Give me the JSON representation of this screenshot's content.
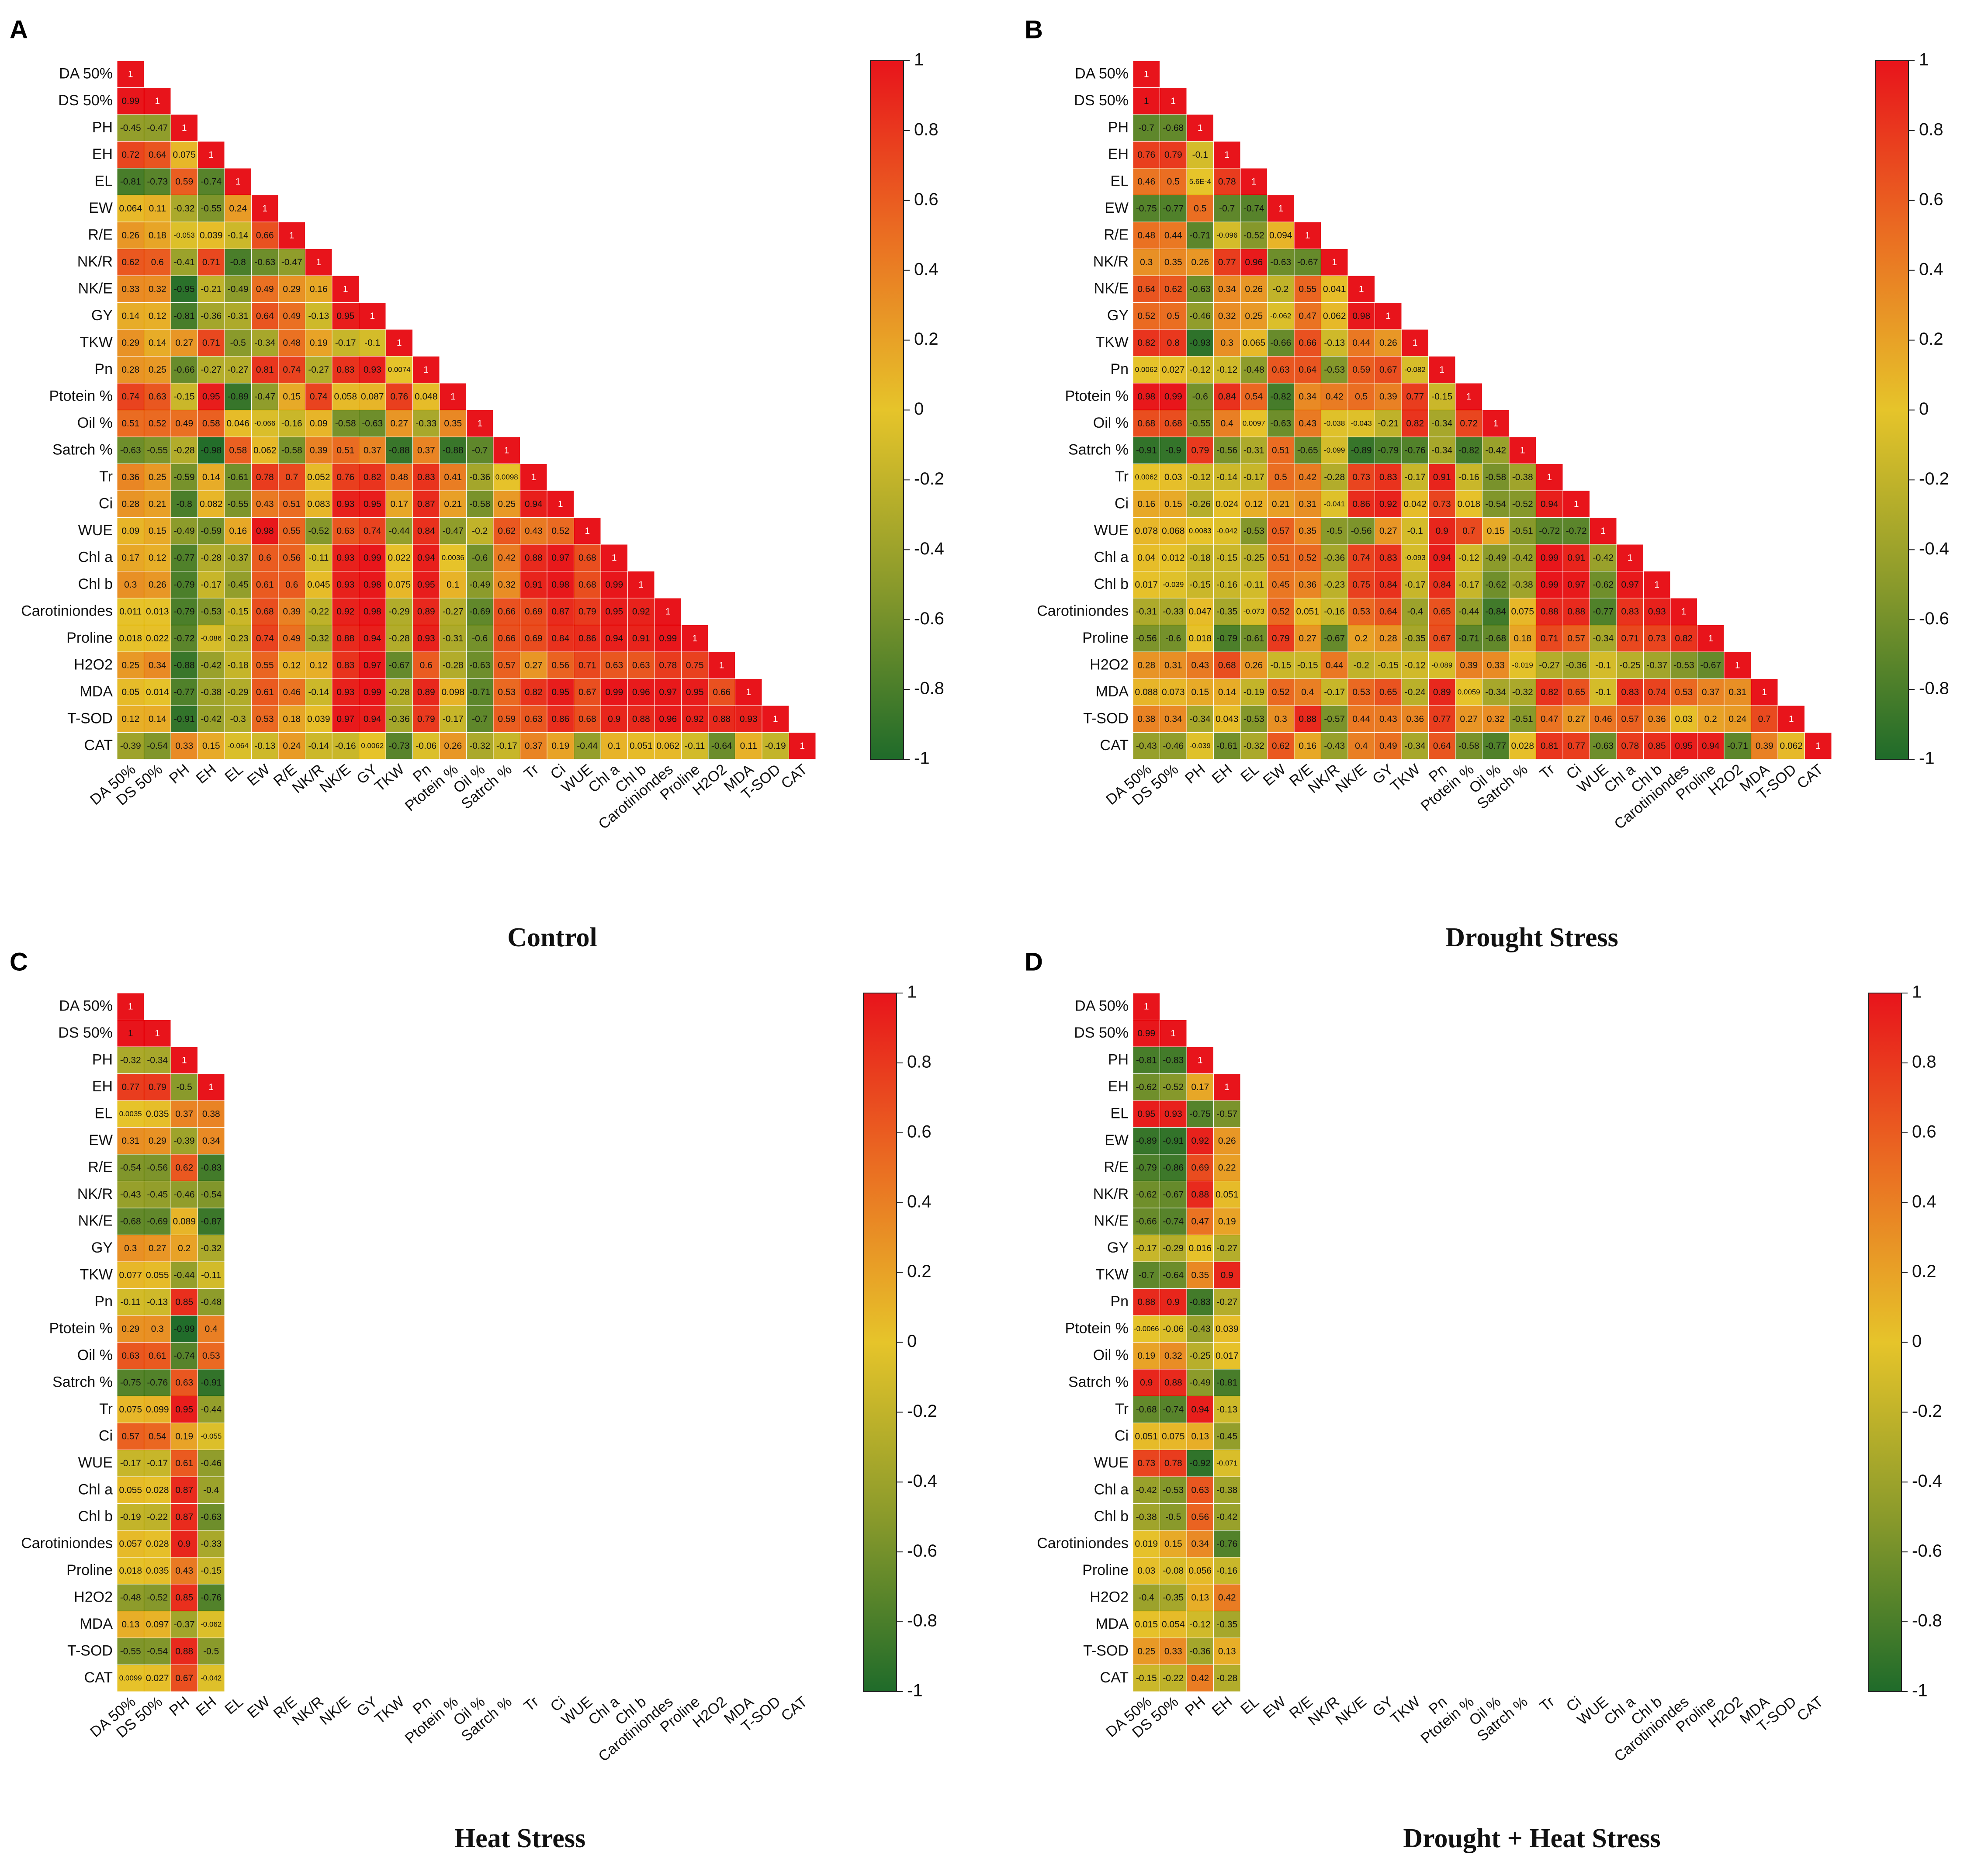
{
  "figure": {
    "variables": [
      "DA 50%",
      "DS 50%",
      "PH",
      "EH",
      "EL",
      "EW",
      "R/E",
      "NK/R",
      "NK/E",
      "GY",
      "TKW",
      "Pn",
      "Ptotein %",
      "Oil %",
      "Satrch %",
      "Tr",
      "Ci",
      "WUE",
      "Chl a",
      "Chl b",
      "Carotiniondes",
      "Proline",
      "H2O2",
      "MDA",
      "T-SOD",
      "CAT"
    ],
    "colorbar_ticks": [
      "1",
      "0.8",
      "0.6",
      "0.4",
      "0.2",
      "0",
      "-0.2",
      "-0.4",
      "-0.6",
      "-0.8",
      "-1"
    ],
    "colors": {
      "positive": "#e8141b",
      "middle": "#e6c42a",
      "negative": "#1f6b2a"
    }
  },
  "chart_data": [
    {
      "type": "heatmap",
      "panel_letter": "A",
      "title": "Control",
      "vmin": -1,
      "vmax": 1,
      "rows": [
        [
          "1"
        ],
        [
          "0.99",
          "1"
        ],
        [
          "-0.45",
          "-0.47",
          "1"
        ],
        [
          "0.72",
          "0.64",
          "0.075",
          "1"
        ],
        [
          "-0.81",
          "-0.73",
          "0.59",
          "-0.74",
          "1"
        ],
        [
          "0.064",
          "0.11",
          "-0.32",
          "-0.55",
          "0.24",
          "1"
        ],
        [
          "0.26",
          "0.18",
          "-0.053",
          "0.039",
          "-0.14",
          "0.66",
          "1"
        ],
        [
          "0.62",
          "0.6",
          "-0.41",
          "0.71",
          "-0.8",
          "-0.63",
          "-0.47",
          "1"
        ],
        [
          "0.33",
          "0.32",
          "-0.95",
          "-0.21",
          "-0.49",
          "0.49",
          "0.29",
          "0.16",
          "1"
        ],
        [
          "0.14",
          "0.12",
          "-0.81",
          "-0.36",
          "-0.31",
          "0.64",
          "0.49",
          "-0.13",
          "0.95",
          "1"
        ],
        [
          "0.29",
          "0.14",
          "0.27",
          "0.71",
          "-0.5",
          "-0.34",
          "0.48",
          "0.19",
          "-0.17",
          "-0.1",
          "1"
        ],
        [
          "0.28",
          "0.25",
          "-0.66",
          "-0.27",
          "-0.27",
          "0.81",
          "0.74",
          "-0.27",
          "0.83",
          "0.93",
          "0.0074",
          "1"
        ],
        [
          "0.74",
          "0.63",
          "-0.15",
          "0.95",
          "-0.89",
          "-0.47",
          "0.15",
          "0.74",
          "0.058",
          "0.087",
          "0.76",
          "0.048",
          "1"
        ],
        [
          "0.51",
          "0.52",
          "0.49",
          "0.58",
          "0.046",
          "-0.066",
          "-0.16",
          "0.09",
          "-0.58",
          "-0.63",
          "0.27",
          "-0.33",
          "0.35",
          "1"
        ],
        [
          "-0.63",
          "-0.55",
          "-0.28",
          "-0.98",
          "0.58",
          "0.062",
          "-0.58",
          "0.39",
          "0.51",
          "0.37",
          "-0.88",
          "0.37",
          "-0.88",
          "-0.7",
          "1"
        ],
        [
          "0.36",
          "0.25",
          "-0.59",
          "0.14",
          "-0.61",
          "0.78",
          "0.7",
          "0.052",
          "0.76",
          "0.82",
          "0.48",
          "0.83",
          "0.41",
          "-0.36",
          "0.0098",
          "1"
        ],
        [
          "0.28",
          "0.21",
          "-0.8",
          "0.082",
          "-0.55",
          "0.43",
          "0.51",
          "0.083",
          "0.93",
          "0.95",
          "0.17",
          "0.87",
          "0.21",
          "-0.58",
          "0.25",
          "0.94",
          "1"
        ],
        [
          "0.09",
          "0.15",
          "-0.49",
          "-0.59",
          "0.16",
          "0.98",
          "0.55",
          "-0.52",
          "0.63",
          "0.74",
          "-0.44",
          "0.84",
          "-0.47",
          "-0.2",
          "0.62",
          "0.43",
          "0.52",
          "1"
        ],
        [
          "0.17",
          "0.12",
          "-0.77",
          "-0.28",
          "-0.37",
          "0.6",
          "0.56",
          "-0.11",
          "0.93",
          "0.99",
          "0.022",
          "0.94",
          "0.0036",
          "-0.6",
          "0.42",
          "0.88",
          "0.97",
          "0.68",
          "1"
        ],
        [
          "0.3",
          "0.26",
          "-0.79",
          "-0.17",
          "-0.45",
          "0.61",
          "0.6",
          "0.045",
          "0.93",
          "0.98",
          "0.075",
          "0.95",
          "0.1",
          "-0.49",
          "0.32",
          "0.91",
          "0.98",
          "0.68",
          "0.99",
          "1"
        ],
        [
          "0.011",
          "0.013",
          "-0.79",
          "-0.53",
          "-0.15",
          "0.68",
          "0.39",
          "-0.22",
          "0.92",
          "0.98",
          "-0.29",
          "0.89",
          "-0.27",
          "-0.69",
          "0.66",
          "0.69",
          "0.87",
          "0.79",
          "0.95",
          "0.92",
          "1"
        ],
        [
          "0.018",
          "0.022",
          "-0.72",
          "-0.086",
          "-0.23",
          "0.74",
          "0.49",
          "-0.32",
          "0.88",
          "0.94",
          "-0.28",
          "0.93",
          "-0.31",
          "-0.6",
          "0.66",
          "0.69",
          "0.84",
          "0.86",
          "0.94",
          "0.91",
          "0.99",
          "1"
        ],
        [
          "0.25",
          "0.34",
          "-0.88",
          "-0.42",
          "-0.18",
          "0.55",
          "0.12",
          "0.12",
          "0.83",
          "0.97",
          "-0.67",
          "0.6",
          "-0.28",
          "-0.63",
          "0.57",
          "0.27",
          "0.56",
          "0.71",
          "0.63",
          "0.63",
          "0.78",
          "0.75",
          "1"
        ],
        [
          "0.05",
          "0.014",
          "-0.77",
          "-0.38",
          "-0.29",
          "0.61",
          "0.46",
          "-0.14",
          "0.93",
          "0.99",
          "-0.28",
          "0.89",
          "0.098",
          "-0.71",
          "0.53",
          "0.82",
          "0.95",
          "0.67",
          "0.99",
          "0.96",
          "0.97",
          "0.95",
          "0.66",
          "1"
        ],
        [
          "0.12",
          "0.14",
          "-0.91",
          "-0.42",
          "-0.3",
          "0.53",
          "0.18",
          "0.039",
          "0.97",
          "0.94",
          "-0.36",
          "0.79",
          "-0.17",
          "-0.7",
          "0.59",
          "0.63",
          "0.86",
          "0.68",
          "0.9",
          "0.88",
          "0.96",
          "0.92",
          "0.88",
          "0.93",
          "1"
        ],
        [
          "-0.39",
          "-0.54",
          "0.33",
          "0.15",
          "-0.064",
          "-0.13",
          "0.24",
          "-0.14",
          "-0.16",
          "0.0062",
          "-0.73",
          "-0.06",
          "0.26",
          "-0.32",
          "-0.17",
          "0.37",
          "0.19",
          "-0.44",
          "0.1",
          "0.051",
          "0.062",
          "-0.11",
          "-0.64",
          "0.11",
          "-0.19",
          "1"
        ]
      ]
    },
    {
      "type": "heatmap",
      "panel_letter": "B",
      "title": "Drought Stress",
      "vmin": -1,
      "vmax": 1,
      "rows": [
        [
          "1"
        ],
        [
          "1",
          "1"
        ],
        [
          "-0.7",
          "-0.68",
          "1"
        ],
        [
          "0.76",
          "0.79",
          "-0.1",
          "1"
        ],
        [
          "0.46",
          "0.5",
          "5.6E-4",
          "0.78",
          "1"
        ],
        [
          "-0.75",
          "-0.77",
          "0.5",
          "-0.7",
          "-0.74",
          "1"
        ],
        [
          "0.48",
          "0.44",
          "-0.71",
          "-0.096",
          "-0.52",
          "0.094",
          "1"
        ],
        [
          "0.3",
          "0.35",
          "0.26",
          "0.77",
          "0.96",
          "-0.63",
          "-0.67",
          "1"
        ],
        [
          "0.64",
          "0.62",
          "-0.63",
          "0.34",
          "0.26",
          "-0.2",
          "0.55",
          "0.041",
          "1"
        ],
        [
          "0.52",
          "0.5",
          "-0.46",
          "0.32",
          "0.25",
          "-0.062",
          "0.47",
          "0.062",
          "0.98",
          "1"
        ],
        [
          "0.82",
          "0.8",
          "-0.93",
          "0.3",
          "0.065",
          "-0.66",
          "0.66",
          "-0.13",
          "0.44",
          "0.26",
          "1"
        ],
        [
          "0.0062",
          "0.027",
          "-0.12",
          "-0.12",
          "-0.48",
          "0.63",
          "0.64",
          "-0.53",
          "0.59",
          "0.67",
          "-0.082",
          "1"
        ],
        [
          "0.98",
          "0.99",
          "-0.6",
          "0.84",
          "0.54",
          "-0.82",
          "0.34",
          "0.42",
          "0.5",
          "0.39",
          "0.77",
          "-0.15",
          "1"
        ],
        [
          "0.68",
          "0.68",
          "-0.55",
          "0.4",
          "0.0097",
          "-0.63",
          "0.43",
          "-0.038",
          "-0.043",
          "-0.21",
          "0.82",
          "-0.34",
          "0.72",
          "1"
        ],
        [
          "-0.91",
          "-0.9",
          "0.79",
          "-0.56",
          "-0.31",
          "0.51",
          "-0.65",
          "-0.099",
          "-0.89",
          "-0.79",
          "-0.76",
          "-0.34",
          "-0.82",
          "-0.42",
          "1"
        ],
        [
          "0.0062",
          "0.03",
          "-0.12",
          "-0.14",
          "-0.17",
          "0.5",
          "0.42",
          "-0.28",
          "0.73",
          "0.83",
          "-0.17",
          "0.91",
          "-0.16",
          "-0.58",
          "-0.38",
          "1"
        ],
        [
          "0.16",
          "0.15",
          "-0.26",
          "0.024",
          "0.12",
          "0.21",
          "0.31",
          "-0.041",
          "0.86",
          "0.92",
          "0.042",
          "0.73",
          "0.018",
          "-0.54",
          "-0.52",
          "0.94",
          "1"
        ],
        [
          "0.078",
          "0.068",
          "0.0083",
          "-0.042",
          "-0.53",
          "0.57",
          "0.35",
          "-0.5",
          "-0.56",
          "0.27",
          "-0.1",
          "0.9",
          "0.7",
          "0.15",
          "-0.51",
          "-0.72",
          "-0.72",
          "1"
        ],
        [
          "0.04",
          "0.012",
          "-0.18",
          "-0.15",
          "-0.25",
          "0.51",
          "0.52",
          "-0.36",
          "0.74",
          "0.83",
          "-0.093",
          "0.94",
          "-0.12",
          "-0.49",
          "-0.42",
          "0.99",
          "0.91",
          "-0.42",
          "1"
        ],
        [
          "0.017",
          "-0.039",
          "-0.15",
          "-0.16",
          "-0.11",
          "0.45",
          "0.36",
          "-0.23",
          "0.75",
          "0.84",
          "-0.17",
          "0.84",
          "-0.17",
          "-0.62",
          "-0.38",
          "0.99",
          "0.97",
          "-0.62",
          "0.97",
          "1"
        ],
        [
          "-0.31",
          "-0.33",
          "0.047",
          "-0.35",
          "-0.073",
          "0.52",
          "0.051",
          "-0.16",
          "0.53",
          "0.64",
          "-0.4",
          "0.65",
          "-0.44",
          "-0.84",
          "0.075",
          "0.88",
          "0.88",
          "-0.77",
          "0.83",
          "0.93",
          "1"
        ],
        [
          "-0.56",
          "-0.6",
          "0.018",
          "-0.79",
          "-0.61",
          "0.79",
          "0.27",
          "-0.67",
          "0.2",
          "0.28",
          "-0.35",
          "0.67",
          "-0.71",
          "-0.68",
          "0.18",
          "0.71",
          "0.57",
          "-0.34",
          "0.71",
          "0.73",
          "0.82",
          "1"
        ],
        [
          "0.28",
          "0.31",
          "0.43",
          "0.68",
          "0.26",
          "-0.15",
          "-0.15",
          "0.44",
          "-0.2",
          "-0.15",
          "-0.12",
          "-0.089",
          "0.39",
          "0.33",
          "-0.019",
          "-0.27",
          "-0.36",
          "-0.1",
          "-0.25",
          "-0.37",
          "-0.53",
          "-0.67",
          "1"
        ],
        [
          "0.088",
          "0.073",
          "0.15",
          "0.14",
          "-0.19",
          "0.52",
          "0.4",
          "-0.17",
          "0.53",
          "0.65",
          "-0.24",
          "0.89",
          "0.0059",
          "-0.34",
          "-0.32",
          "0.82",
          "0.65",
          "-0.1",
          "0.83",
          "0.74",
          "0.53",
          "0.37",
          "0.31",
          "1"
        ],
        [
          "0.38",
          "0.34",
          "-0.34",
          "0.043",
          "-0.53",
          "0.3",
          "0.88",
          "-0.57",
          "0.44",
          "0.43",
          "0.36",
          "0.77",
          "0.27",
          "0.32",
          "-0.51",
          "0.47",
          "0.27",
          "0.46",
          "0.57",
          "0.36",
          "0.03",
          "0.2",
          "0.24",
          "0.7",
          "1"
        ],
        [
          "-0.43",
          "-0.46",
          "-0.039",
          "-0.61",
          "-0.32",
          "0.62",
          "0.16",
          "-0.43",
          "0.4",
          "0.49",
          "-0.34",
          "0.64",
          "-0.58",
          "-0.77",
          "0.028",
          "0.81",
          "0.77",
          "-0.63",
          "0.78",
          "0.85",
          "0.95",
          "0.94",
          "-0.71",
          "0.39",
          "0.062",
          "1"
        ]
      ]
    },
    {
      "type": "heatmap",
      "panel_letter": "C",
      "title": "Heat Stress",
      "vmin": -1,
      "vmax": 1,
      "rows": [
        [
          "1"
        ],
        [
          "1",
          "1"
        ],
        [
          "-0.32",
          "-0.34",
          "1"
        ],
        [
          "0.77",
          "0.79",
          "-0.5",
          "1"
        ],
        [
          "0.0035",
          "0.035",
          "0.37",
          "0.38"
        ],
        [
          "0.31",
          "0.29",
          "-0.39",
          "0.34"
        ],
        [
          "-0.54",
          "-0.56",
          "0.62",
          "-0.83"
        ],
        [
          "-0.43",
          "-0.45",
          "-0.46",
          "-0.54"
        ],
        [
          "-0.68",
          "-0.69",
          "0.089",
          "-0.87"
        ],
        [
          "0.3",
          "0.27",
          "0.2",
          "-0.32"
        ],
        [
          "0.077",
          "0.055",
          "-0.44",
          "-0.11"
        ],
        [
          "-0.11",
          "-0.13",
          "0.85",
          "-0.48"
        ],
        [
          "0.29",
          "0.3",
          "-0.99",
          "0.4"
        ],
        [
          "0.63",
          "0.61",
          "-0.74",
          "0.53"
        ],
        [
          "-0.75",
          "-0.76",
          "0.63",
          "-0.91"
        ],
        [
          "0.075",
          "0.099",
          "0.95",
          "-0.44"
        ],
        [
          "0.57",
          "0.54",
          "0.19",
          "-0.055"
        ],
        [
          "-0.17",
          "-0.17",
          "0.61",
          "-0.46"
        ],
        [
          "0.055",
          "0.028",
          "0.87",
          "-0.4"
        ],
        [
          "-0.19",
          "-0.22",
          "0.87",
          "-0.63"
        ],
        [
          "0.057",
          "0.028",
          "0.9",
          "-0.33"
        ],
        [
          "0.018",
          "0.035",
          "0.43",
          "-0.15"
        ],
        [
          "-0.48",
          "-0.52",
          "0.85",
          "-0.76"
        ],
        [
          "0.13",
          "0.097",
          "-0.37",
          "-0.062"
        ],
        [
          "-0.55",
          "-0.54",
          "0.88",
          "-0.5"
        ],
        [
          "0.0099",
          "0.027",
          "0.67",
          "-0.042"
        ]
      ]
    },
    {
      "type": "heatmap",
      "panel_letter": "D",
      "title": "Drought + Heat Stress",
      "vmin": -1,
      "vmax": 1,
      "rows": [
        [
          "1"
        ],
        [
          "0.99",
          "1"
        ],
        [
          "-0.81",
          "-0.83",
          "1"
        ],
        [
          "-0.62",
          "-0.52",
          "0.17",
          "1"
        ],
        [
          "0.95",
          "0.93",
          "-0.75",
          "-0.57"
        ],
        [
          "-0.89",
          "-0.91",
          "0.92",
          "0.26"
        ],
        [
          "-0.79",
          "-0.86",
          "0.69",
          "0.22"
        ],
        [
          "-0.62",
          "-0.67",
          "0.88",
          "0.051"
        ],
        [
          "-0.66",
          "-0.74",
          "0.47",
          "0.19"
        ],
        [
          "-0.17",
          "-0.29",
          "0.016",
          "-0.27"
        ],
        [
          "-0.7",
          "-0.64",
          "0.35",
          "0.9"
        ],
        [
          "0.88",
          "0.9",
          "-0.83",
          "-0.27"
        ],
        [
          "-0.0066",
          "-0.06",
          "-0.43",
          "0.039"
        ],
        [
          "0.19",
          "0.32",
          "-0.25",
          "0.017"
        ],
        [
          "0.9",
          "0.88",
          "-0.49",
          "-0.81"
        ],
        [
          "-0.68",
          "-0.74",
          "0.94",
          "-0.13"
        ],
        [
          "0.051",
          "0.075",
          "0.13",
          "-0.45"
        ],
        [
          "0.73",
          "0.78",
          "-0.92",
          "-0.071"
        ],
        [
          "-0.42",
          "-0.53",
          "0.63",
          "-0.38"
        ],
        [
          "-0.38",
          "-0.5",
          "0.56",
          "-0.42"
        ],
        [
          "0.019",
          "0.15",
          "0.34",
          "-0.76"
        ],
        [
          "0.03",
          "-0.08",
          "0.056",
          "-0.16"
        ],
        [
          "-0.4",
          "-0.35",
          "0.13",
          "0.42"
        ],
        [
          "0.015",
          "0.054",
          "-0.12",
          "-0.35"
        ],
        [
          "0.25",
          "0.33",
          "-0.36",
          "0.13"
        ],
        [
          "-0.15",
          "-0.22",
          "0.42",
          "-0.28"
        ]
      ]
    }
  ]
}
